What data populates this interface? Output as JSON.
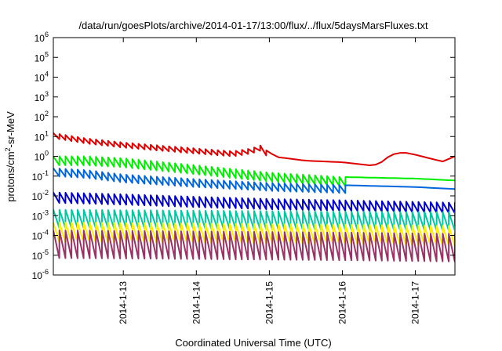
{
  "chart_data": {
    "type": "line",
    "title": "/data/run/goesPlots/archive/2014-01-17/13:00/flux/../flux/5daysMarsFluxes.txt",
    "xlabel": "Coordinated Universal Time (UTC)",
    "ylabel": {
      "base": "protons/cm",
      "sup": "2",
      "rest": "-sr-MeV"
    },
    "yscale": "log",
    "ylim": [
      1e-06,
      1000000.0
    ],
    "xlim": [
      "2014-01-12T01:00",
      "2014-01-17T13:00"
    ],
    "yticks": [
      {
        "value": 1e-06,
        "base": "10",
        "exp": "-6"
      },
      {
        "value": 1e-05,
        "base": "10",
        "exp": "-5"
      },
      {
        "value": 0.0001,
        "base": "10",
        "exp": "-4"
      },
      {
        "value": 0.001,
        "base": "10",
        "exp": "-3"
      },
      {
        "value": 0.01,
        "base": "10",
        "exp": "-2"
      },
      {
        "value": 0.1,
        "base": "10",
        "exp": "-1"
      },
      {
        "value": 1,
        "base": "10",
        "exp": "0"
      },
      {
        "value": 10,
        "base": "10",
        "exp": "1"
      },
      {
        "value": 100,
        "base": "10",
        "exp": "2"
      },
      {
        "value": 1000,
        "base": "10",
        "exp": "3"
      },
      {
        "value": 10000,
        "base": "10",
        "exp": "4"
      },
      {
        "value": 100000,
        "base": "10",
        "exp": "5"
      },
      {
        "value": 1000000,
        "base": "10",
        "exp": "6"
      }
    ],
    "xticks": [
      {
        "date": "2014-01-13T00:00",
        "label": "2014-1-13"
      },
      {
        "date": "2014-01-14T00:00",
        "label": "2014-1-14"
      },
      {
        "date": "2014-01-15T00:00",
        "label": "2014-1-15"
      },
      {
        "date": "2014-01-16T00:00",
        "label": "2014-1-16"
      },
      {
        "date": "2014-01-17T00:00",
        "label": "2014-1-17"
      }
    ],
    "grid": false,
    "legend": "none",
    "series": [
      {
        "color": "#e00000",
        "points": [
          [
            "2014-01-12T01:00",
            15
          ],
          [
            "2014-01-12T12:00",
            8
          ],
          [
            "2014-01-13T00:00",
            5
          ],
          [
            "2014-01-13T12:00",
            3.5
          ],
          [
            "2014-01-14T00:00",
            2.5
          ],
          [
            "2014-01-14T12:00",
            1.8
          ],
          [
            "2014-01-14T18:00",
            2.5
          ],
          [
            "2014-01-14T21:00",
            3.5
          ],
          [
            "2014-01-15T00:00",
            1.5
          ],
          [
            "2014-01-15T03:00",
            0.9
          ],
          [
            "2014-01-15T12:00",
            0.6
          ],
          [
            "2014-01-16T00:00",
            0.5
          ],
          [
            "2014-01-16T09:00",
            0.35
          ],
          [
            "2014-01-16T12:00",
            0.4
          ],
          [
            "2014-01-16T16:00",
            1.2
          ],
          [
            "2014-01-16T20:00",
            1.6
          ],
          [
            "2014-01-17T00:00",
            1.2
          ],
          [
            "2014-01-17T06:00",
            0.7
          ],
          [
            "2014-01-17T09:00",
            0.55
          ],
          [
            "2014-01-17T13:00",
            1.0
          ]
        ],
        "saw": {
          "ratio": 0.55,
          "from": "2014-01-12T01:00",
          "to": "2014-01-14T22:00"
        }
      },
      {
        "color": "#00ee00",
        "points": [
          [
            "2014-01-12T01:00",
            1.0
          ],
          [
            "2014-01-12T12:00",
            1.0
          ],
          [
            "2014-01-13T00:00",
            0.8
          ],
          [
            "2014-01-14T00:00",
            0.35
          ],
          [
            "2014-01-15T00:00",
            0.15
          ],
          [
            "2014-01-16T00:00",
            0.09
          ],
          [
            "2014-01-17T00:00",
            0.075
          ],
          [
            "2014-01-17T13:00",
            0.06
          ]
        ],
        "saw": {
          "ratio": 0.35,
          "from": "2014-01-12T01:00",
          "to": "2014-01-16T00:00"
        }
      },
      {
        "color": "#0066dd",
        "points": [
          [
            "2014-01-12T01:00",
            0.25
          ],
          [
            "2014-01-12T12:00",
            0.2
          ],
          [
            "2014-01-13T00:00",
            0.12
          ],
          [
            "2014-01-14T00:00",
            0.07
          ],
          [
            "2014-01-15T00:00",
            0.045
          ],
          [
            "2014-01-16T00:00",
            0.035
          ],
          [
            "2014-01-17T00:00",
            0.028
          ],
          [
            "2014-01-17T13:00",
            0.022
          ]
        ],
        "saw": {
          "ratio": 0.4,
          "from": "2014-01-12T01:00",
          "to": "2014-01-16T00:00"
        }
      },
      {
        "color": "#0000cc",
        "points": [
          [
            "2014-01-12T01:00",
            0.015
          ],
          [
            "2014-01-13T00:00",
            0.012
          ],
          [
            "2014-01-14T00:00",
            0.009
          ],
          [
            "2014-01-15T00:00",
            0.007
          ],
          [
            "2014-01-16T00:00",
            0.006
          ],
          [
            "2014-01-17T00:00",
            0.005
          ],
          [
            "2014-01-17T13:00",
            0.0045
          ]
        ],
        "saw": {
          "ratio": 0.3,
          "from": "2014-01-12T01:00",
          "to": "2014-01-17T13:00"
        }
      },
      {
        "color": "#00c8a0",
        "points": [
          [
            "2014-01-12T01:00",
            0.002
          ],
          [
            "2014-01-14T00:00",
            0.0018
          ],
          [
            "2014-01-16T00:00",
            0.0016
          ],
          [
            "2014-01-17T13:00",
            0.0015
          ]
        ],
        "saw": {
          "ratio": 0.12,
          "from": "2014-01-12T01:00",
          "to": "2014-01-17T13:00"
        }
      },
      {
        "color": "#ffee00",
        "points": [
          [
            "2014-01-12T01:00",
            0.00045
          ],
          [
            "2014-01-14T00:00",
            0.0004
          ],
          [
            "2014-01-16T00:00",
            0.00035
          ],
          [
            "2014-01-17T13:00",
            0.0003
          ]
        ],
        "saw": {
          "ratio": 0.1,
          "from": "2014-01-12T01:00",
          "to": "2014-01-17T13:00"
        }
      },
      {
        "color": "#993366",
        "points": [
          [
            "2014-01-12T01:00",
            0.00018
          ],
          [
            "2014-01-14T00:00",
            0.00016
          ],
          [
            "2014-01-16T00:00",
            0.00014
          ],
          [
            "2014-01-17T13:00",
            0.00012
          ]
        ],
        "saw": {
          "ratio": 0.04,
          "from": "2014-01-12T01:00",
          "to": "2014-01-17T13:00"
        }
      }
    ]
  }
}
